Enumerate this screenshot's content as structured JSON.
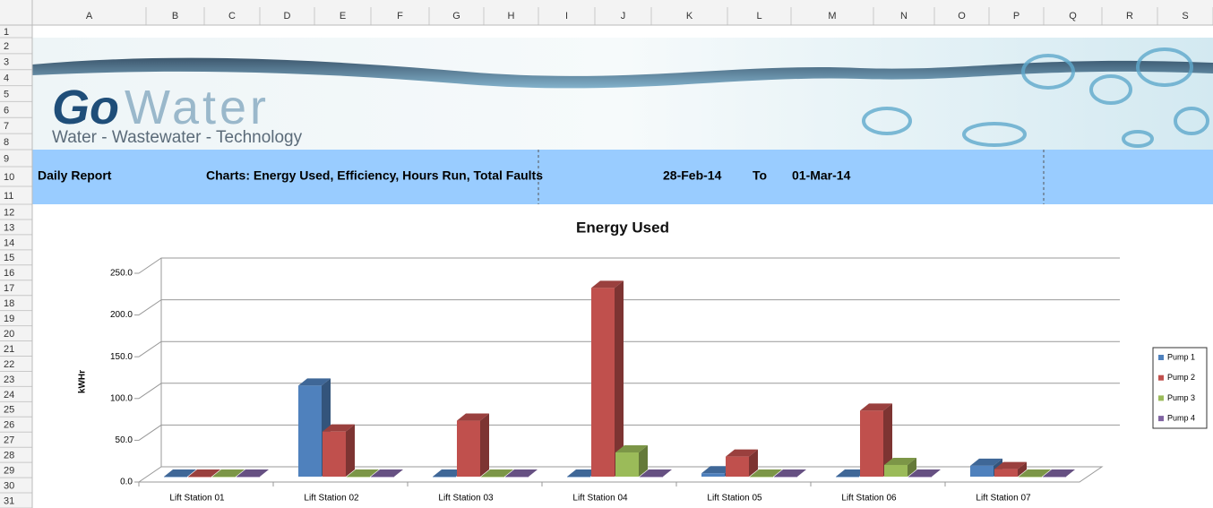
{
  "sheet": {
    "columns": [
      "A",
      "B",
      "C",
      "D",
      "E",
      "F",
      "G",
      "H",
      "I",
      "J",
      "K",
      "L",
      "M",
      "N",
      "O",
      "P",
      "Q",
      "R",
      "S"
    ],
    "rows": [
      "1",
      "2",
      "3",
      "4",
      "5",
      "6",
      "7",
      "8",
      "9",
      "10",
      "11",
      "12",
      "13",
      "14",
      "15",
      "16",
      "17",
      "18",
      "19",
      "20",
      "21",
      "22",
      "23",
      "24",
      "25",
      "26",
      "27",
      "28",
      "29",
      "30",
      "31"
    ]
  },
  "banner": {
    "brand_bold": "Go",
    "brand_light": "Water",
    "tagline": "Water - Wastewater - Technology"
  },
  "report": {
    "title": "Daily Report",
    "charts": "Charts: Energy Used, Efficiency, Hours Run, Total Faults",
    "from": "28-Feb-14",
    "to_label": "To",
    "to": "01-Mar-14"
  },
  "chart_data": {
    "type": "bar",
    "title": "Energy Used",
    "y_label": "kWHr",
    "categories": [
      "Lift Station 01",
      "Lift Station 02",
      "Lift Station 03",
      "Lift Station 04",
      "Lift Station 05",
      "Lift Station 06",
      "Lift Station 07"
    ],
    "series": [
      {
        "name": "Pump 1",
        "color": "#4f81bd",
        "values": [
          0,
          109,
          0,
          0,
          4,
          0,
          13
        ]
      },
      {
        "name": "Pump 2",
        "color": "#c0504d",
        "values": [
          0,
          54,
          67,
          226,
          24,
          79,
          9
        ]
      },
      {
        "name": "Pump 3",
        "color": "#9bbb59",
        "values": [
          0,
          0,
          0,
          29,
          0,
          14,
          0
        ]
      },
      {
        "name": "Pump 4",
        "color": "#8064a2",
        "values": [
          0,
          0,
          0,
          0,
          0,
          0,
          0
        ]
      }
    ],
    "ylim": [
      0,
      250
    ],
    "yticks": [
      {
        "value": 0,
        "label": "0.0"
      },
      {
        "value": 50,
        "label": "50.0"
      },
      {
        "value": 100,
        "label": "100.0"
      },
      {
        "value": 150,
        "label": "150.0"
      },
      {
        "value": 200,
        "label": "200.0"
      },
      {
        "value": 250,
        "label": "250.0"
      }
    ],
    "grid": true,
    "legend": "right"
  }
}
